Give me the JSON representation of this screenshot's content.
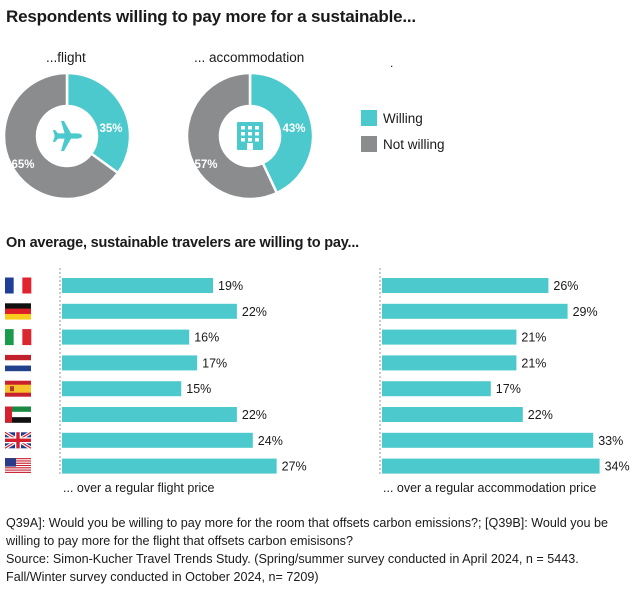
{
  "header": {
    "title": "Respondents willing to pay more for a sustainable...",
    "subtitle": "On average, sustainable travelers are willing to pay..."
  },
  "colors": {
    "willing": "#4cc9cc",
    "not_willing": "#8a8c8e",
    "bar": "#4cc9cc",
    "divider": "#9a9a9a"
  },
  "chart_data": [
    {
      "type": "pie",
      "title": "...flight",
      "icon": "airplane-icon",
      "categories": [
        "Willing",
        "Not willing"
      ],
      "values": [
        35,
        65
      ],
      "labels": [
        "35%",
        "65%"
      ]
    },
    {
      "type": "pie",
      "title": "... accommodation",
      "icon": "hotel-icon",
      "categories": [
        "Willing",
        "Not willing"
      ],
      "values": [
        43,
        57
      ],
      "labels": [
        "43%",
        "57%"
      ]
    },
    {
      "type": "bar",
      "orientation": "horizontal",
      "xlabel": "... over a regular flight price",
      "categories": [
        "France",
        "Germany",
        "Italy",
        "Netherlands",
        "Spain",
        "United Arab Emirates",
        "United Kingdom",
        "United States"
      ],
      "values": [
        19,
        22,
        16,
        17,
        15,
        22,
        24,
        27
      ],
      "labels": [
        "19%",
        "22%",
        "16%",
        "17%",
        "15%",
        "22%",
        "24%",
        "27%"
      ]
    },
    {
      "type": "bar",
      "orientation": "horizontal",
      "xlabel": "... over a regular  accommodation price",
      "categories": [
        "France",
        "Germany",
        "Italy",
        "Netherlands",
        "Spain",
        "United Arab Emirates",
        "United Kingdom",
        "United States"
      ],
      "values": [
        26,
        29,
        21,
        21,
        17,
        22,
        33,
        34
      ],
      "labels": [
        "26%",
        "29%",
        "21%",
        "21%",
        "17%",
        "22%",
        "33%",
        "34%"
      ]
    }
  ],
  "legend": {
    "placement": "right",
    "dot": ".",
    "items": [
      {
        "label": "Willing",
        "color": "#4cc9cc"
      },
      {
        "label": "Not willing",
        "color": "#8a8c8e"
      }
    ]
  },
  "flags": [
    "france-flag-icon",
    "germany-flag-icon",
    "italy-flag-icon",
    "netherlands-flag-icon",
    "spain-flag-icon",
    "uae-flag-icon",
    "uk-flag-icon",
    "usa-flag-icon"
  ],
  "footnote": {
    "line1": "Q39A]: Would you be willing to pay more for the room that offsets carbon emissions?; [Q39B]: Would you be",
    "line2": "willing to pay more for the flight that offsets carbon emisisons?",
    "line3": "Source:  Simon-Kucher Travel Trends Study. (Spring/summer survey conducted in April 2024, n = 5443.",
    "line4": "Fall/Winter survey conducted in October 2024, n= 7209)"
  }
}
